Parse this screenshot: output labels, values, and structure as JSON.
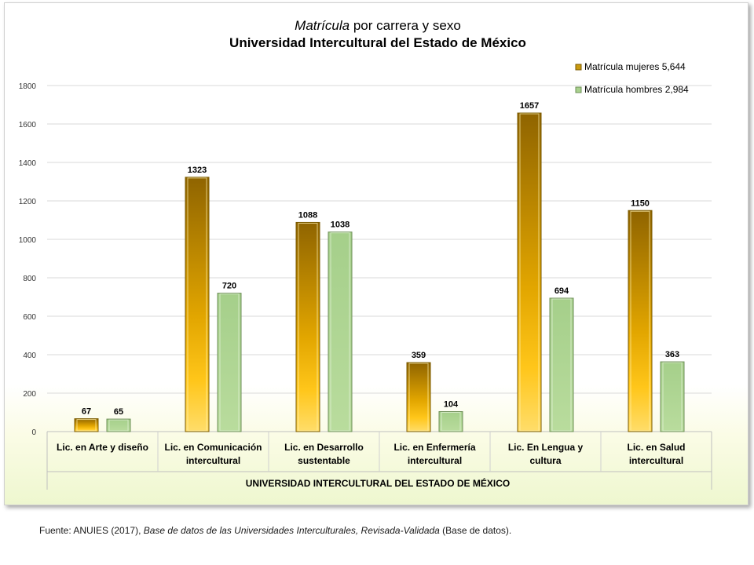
{
  "chart_data": {
    "type": "bar",
    "title_italic": "Matrícula",
    "title_rest": " por carrera y sexo",
    "subtitle": "Universidad Intercultural del Estado de México",
    "xlabel": "UNIVERSIDAD INTERCULTURAL DEL ESTADO DE MÉXICO",
    "ylabel": "",
    "ylim": [
      0,
      1800
    ],
    "yticks": [
      0,
      200,
      400,
      600,
      800,
      1000,
      1200,
      1400,
      1600,
      1800
    ],
    "grid": true,
    "legend_position": "top-right",
    "categories": [
      [
        "Lic. en Arte y diseño"
      ],
      [
        "Lic. en Comunicación",
        "intercultural"
      ],
      [
        "Lic. en Desarrollo",
        "sustentable"
      ],
      [
        "Lic. en Enfermería",
        "intercultural"
      ],
      [
        "Lic. En Lengua y",
        "cultura"
      ],
      [
        "Lic. en Salud",
        "intercultural"
      ]
    ],
    "series": [
      {
        "name": "Matrícula mujeres  5,644",
        "color": "#c99a10",
        "values": [
          67,
          1323,
          1088,
          359,
          1657,
          1150
        ]
      },
      {
        "name": "Matrícula hombres 2,984",
        "color": "#a9d18e",
        "values": [
          65,
          720,
          1038,
          104,
          694,
          363
        ]
      }
    ]
  },
  "source": {
    "prefix": "Fuente: ANUIES (2017),  ",
    "italic": "Base de datos de las Universidades  Interculturales, Revisada-Validada",
    "suffix": "  (Base de datos)."
  }
}
